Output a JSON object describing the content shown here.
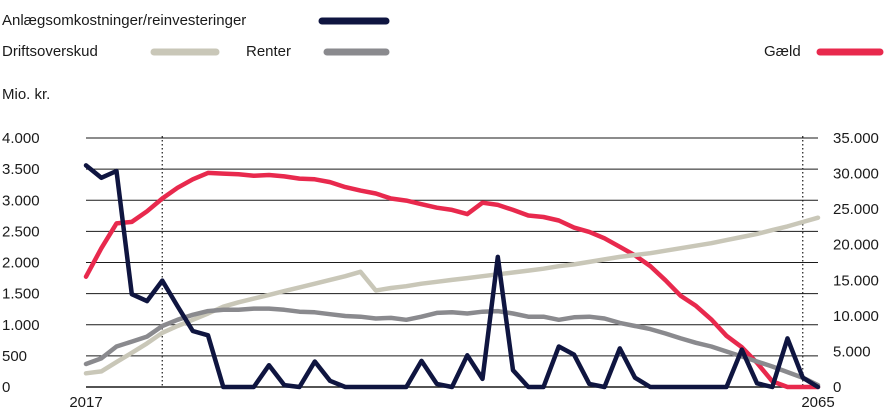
{
  "chart_data": {
    "type": "line",
    "unit_label": "Mio. kr.",
    "x_range": [
      2017,
      2065
    ],
    "x_tick_labels": [
      "2017",
      "2065"
    ],
    "left_axis": {
      "ylim": [
        0,
        4000
      ],
      "tick_values": [
        0,
        500,
        1000,
        1500,
        2000,
        2500,
        3000,
        3500,
        4000
      ],
      "tick_labels": [
        "0",
        "500",
        "1.000",
        "1.500",
        "2.000",
        "2.500",
        "3.000",
        "3.500",
        "4.000"
      ]
    },
    "right_axis": {
      "ylim": [
        0,
        35000
      ],
      "tick_values": [
        0,
        5000,
        10000,
        15000,
        20000,
        25000,
        30000,
        35000
      ],
      "tick_labels": [
        "0",
        "5.000",
        "10.000",
        "15.000",
        "20.000",
        "25.000",
        "30.000",
        "35.000"
      ]
    },
    "reference_lines_x": [
      2022,
      2064
    ],
    "grid": true,
    "series": [
      {
        "name": "Anlægsomkostninger/reinvesteringer",
        "color": "#0f1540",
        "axis": "left",
        "x": [
          2017,
          2018,
          2019,
          2020,
          2021,
          2022,
          2023,
          2024,
          2025,
          2026,
          2027,
          2028,
          2029,
          2030,
          2031,
          2032,
          2033,
          2034,
          2035,
          2036,
          2037,
          2038,
          2039,
          2040,
          2041,
          2042,
          2043,
          2044,
          2045,
          2046,
          2047,
          2048,
          2049,
          2050,
          2051,
          2052,
          2053,
          2054,
          2055,
          2056,
          2057,
          2058,
          2059,
          2060,
          2061,
          2062,
          2063,
          2064,
          2065
        ],
        "values": [
          3560,
          3360,
          3470,
          1490,
          1380,
          1710,
          1300,
          900,
          830,
          0,
          0,
          0,
          350,
          30,
          0,
          410,
          100,
          0,
          0,
          0,
          0,
          0,
          420,
          50,
          0,
          510,
          130,
          2090,
          270,
          0,
          0,
          650,
          520,
          50,
          0,
          620,
          150,
          0,
          0,
          0,
          0,
          0,
          0,
          600,
          60,
          0,
          780,
          150,
          0
        ]
      },
      {
        "name": "Driftsoverskud",
        "color": "#c9c7b8",
        "axis": "left",
        "x": [
          2017,
          2018,
          2019,
          2020,
          2021,
          2022,
          2023,
          2024,
          2025,
          2026,
          2027,
          2028,
          2029,
          2030,
          2031,
          2032,
          2033,
          2034,
          2035,
          2036,
          2037,
          2038,
          2039,
          2040,
          2041,
          2042,
          2043,
          2044,
          2045,
          2046,
          2047,
          2048,
          2049,
          2050,
          2051,
          2052,
          2053,
          2054,
          2055,
          2056,
          2057,
          2058,
          2059,
          2060,
          2061,
          2062,
          2063,
          2064,
          2065
        ],
        "values": [
          220,
          250,
          400,
          550,
          700,
          870,
          980,
          1080,
          1180,
          1290,
          1360,
          1420,
          1480,
          1540,
          1600,
          1660,
          1720,
          1780,
          1850,
          1550,
          1590,
          1620,
          1660,
          1690,
          1720,
          1750,
          1780,
          1810,
          1840,
          1870,
          1900,
          1940,
          1970,
          2010,
          2050,
          2090,
          2120,
          2150,
          2190,
          2230,
          2270,
          2310,
          2360,
          2410,
          2460,
          2520,
          2580,
          2650,
          2720
        ]
      },
      {
        "name": "Renter",
        "color": "#8a8a8e",
        "axis": "left",
        "x": [
          2017,
          2018,
          2019,
          2020,
          2021,
          2022,
          2023,
          2024,
          2025,
          2026,
          2027,
          2028,
          2029,
          2030,
          2031,
          2032,
          2033,
          2034,
          2035,
          2036,
          2037,
          2038,
          2039,
          2040,
          2041,
          2042,
          2043,
          2044,
          2045,
          2046,
          2047,
          2048,
          2049,
          2050,
          2051,
          2052,
          2053,
          2054,
          2055,
          2056,
          2057,
          2058,
          2059,
          2060,
          2061,
          2062,
          2063,
          2064,
          2065
        ],
        "values": [
          370,
          460,
          650,
          730,
          810,
          980,
          1080,
          1160,
          1220,
          1240,
          1240,
          1260,
          1260,
          1240,
          1210,
          1200,
          1170,
          1140,
          1130,
          1100,
          1110,
          1080,
          1130,
          1190,
          1200,
          1180,
          1210,
          1220,
          1180,
          1130,
          1130,
          1080,
          1120,
          1130,
          1100,
          1030,
          980,
          930,
          860,
          780,
          710,
          650,
          570,
          490,
          410,
          330,
          240,
          150,
          30
        ]
      },
      {
        "name": "Gæld",
        "color": "#e8294d",
        "axis": "right",
        "x": [
          2017,
          2018,
          2019,
          2020,
          2021,
          2022,
          2023,
          2024,
          2025,
          2026,
          2027,
          2028,
          2029,
          2030,
          2031,
          2032,
          2033,
          2034,
          2035,
          2036,
          2037,
          2038,
          2039,
          2040,
          2041,
          2042,
          2043,
          2044,
          2045,
          2046,
          2047,
          2048,
          2049,
          2050,
          2051,
          2052,
          2053,
          2054,
          2055,
          2056,
          2057,
          2058,
          2059,
          2060,
          2061,
          2062,
          2063,
          2064,
          2065
        ],
        "values": [
          15500,
          19500,
          23000,
          23200,
          24700,
          26500,
          28000,
          29200,
          30100,
          30000,
          29900,
          29700,
          29800,
          29600,
          29300,
          29200,
          28800,
          28100,
          27600,
          27200,
          26500,
          26200,
          25700,
          25200,
          24900,
          24300,
          25900,
          25600,
          24900,
          24100,
          23900,
          23400,
          22400,
          21800,
          20900,
          19700,
          18500,
          17000,
          15000,
          12800,
          11400,
          9500,
          7200,
          5600,
          3400,
          800,
          0,
          0,
          0
        ]
      }
    ]
  }
}
